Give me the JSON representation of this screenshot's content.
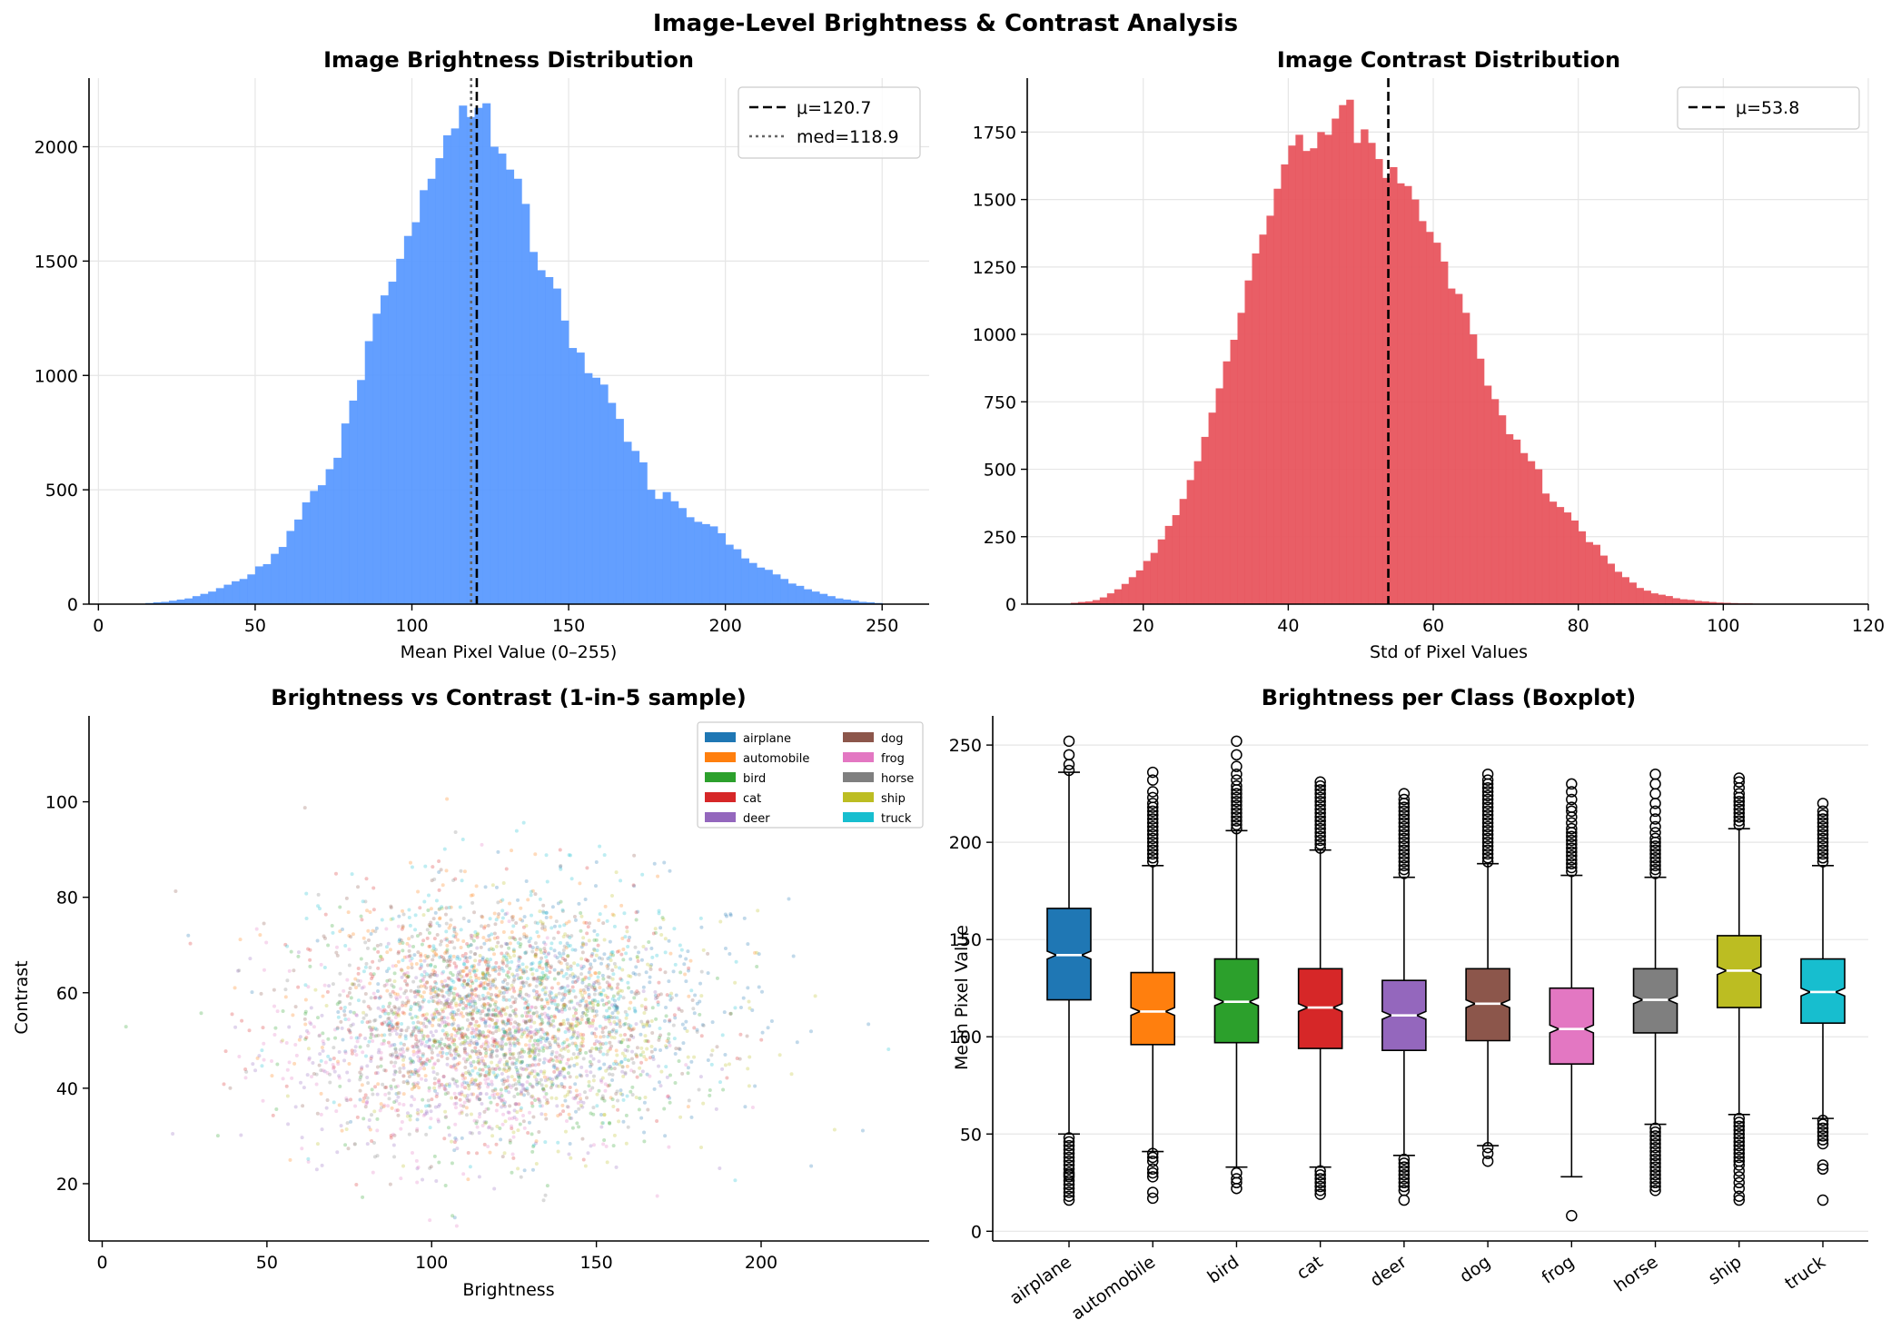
{
  "suptitle": "Image-Level Brightness & Contrast Analysis",
  "colors": {
    "brightness_hist": "#5b9aff",
    "contrast_hist": "#e8555e",
    "grid": "#e6e6e6",
    "axis": "#000000",
    "mean_line": "#000000",
    "median_line": "#666666",
    "box_median": "#ffffff",
    "classes": {
      "airplane": "#1f77b4",
      "automobile": "#ff7f0e",
      "bird": "#2ca02c",
      "cat": "#d62728",
      "deer": "#9467bd",
      "dog": "#8c564b",
      "frog": "#e377c2",
      "horse": "#7f7f7f",
      "ship": "#bcbd22",
      "truck": "#17becf"
    }
  },
  "chart_data": [
    {
      "type": "bar",
      "title": "Image Brightness Distribution",
      "xlabel": "Mean Pixel Value (0–255)",
      "ylabel": "",
      "xlim": [
        -3,
        265
      ],
      "ylim": [
        0,
        2300
      ],
      "xticks": [
        0,
        50,
        100,
        150,
        200,
        250
      ],
      "yticks": [
        0,
        500,
        1000,
        1500,
        2000
      ],
      "grid": true,
      "legend_position": "top-right",
      "bin_edges_start": 15,
      "bin_width": 2.5,
      "values": [
        5,
        8,
        10,
        15,
        20,
        25,
        35,
        45,
        55,
        70,
        85,
        100,
        110,
        130,
        165,
        175,
        220,
        250,
        320,
        370,
        445,
        495,
        520,
        590,
        640,
        790,
        890,
        980,
        1150,
        1270,
        1350,
        1410,
        1510,
        1610,
        1670,
        1810,
        1860,
        1950,
        2050,
        2080,
        2180,
        2130,
        2170,
        2190,
        2000,
        1970,
        1900,
        1860,
        1750,
        1540,
        1460,
        1430,
        1380,
        1240,
        1120,
        1100,
        1010,
        990,
        960,
        880,
        810,
        710,
        670,
        620,
        500,
        460,
        490,
        450,
        420,
        380,
        360,
        350,
        340,
        310,
        260,
        240,
        200,
        180,
        160,
        150,
        130,
        110,
        90,
        80,
        65,
        55,
        45,
        35,
        25,
        20,
        15,
        10,
        8,
        5
      ],
      "lines": [
        {
          "label": "μ=120.7",
          "x": 120.7,
          "style": "dashed"
        },
        {
          "label": "med=118.9",
          "x": 118.9,
          "style": "dotted"
        }
      ]
    },
    {
      "type": "bar",
      "title": "Image Contrast Distribution",
      "xlabel": "Std of Pixel Values",
      "ylabel": "",
      "xlim": [
        4,
        120
      ],
      "ylim": [
        0,
        1950
      ],
      "xticks": [
        20,
        40,
        60,
        80,
        100,
        120
      ],
      "yticks": [
        0,
        250,
        500,
        750,
        1000,
        1250,
        1500,
        1750
      ],
      "grid": true,
      "legend_position": "top-right",
      "bin_edges_start": 10,
      "bin_width": 1.0,
      "values": [
        5,
        8,
        10,
        15,
        25,
        40,
        55,
        75,
        100,
        125,
        160,
        190,
        240,
        290,
        330,
        390,
        460,
        530,
        620,
        710,
        800,
        900,
        980,
        1080,
        1200,
        1300,
        1370,
        1440,
        1540,
        1630,
        1700,
        1740,
        1680,
        1690,
        1750,
        1740,
        1800,
        1850,
        1870,
        1710,
        1760,
        1710,
        1650,
        1580,
        1620,
        1560,
        1550,
        1500,
        1420,
        1380,
        1340,
        1270,
        1170,
        1150,
        1080,
        1000,
        910,
        810,
        760,
        700,
        630,
        610,
        560,
        530,
        500,
        410,
        380,
        360,
        340,
        310,
        270,
        230,
        220,
        180,
        150,
        120,
        100,
        80,
        60,
        50,
        40,
        35,
        30,
        22,
        18,
        16,
        12,
        10,
        8,
        6,
        5,
        4,
        3,
        3,
        2
      ],
      "lines": [
        {
          "label": "μ=53.8",
          "x": 53.8,
          "style": "dashed"
        }
      ]
    },
    {
      "type": "scatter",
      "title": "Brightness vs Contrast (1-in-5 sample)",
      "xlabel": "Brightness",
      "ylabel": "Contrast",
      "xlim": [
        -4,
        251
      ],
      "ylim": [
        8,
        118
      ],
      "xticks": [
        0,
        50,
        100,
        150,
        200
      ],
      "yticks": [
        20,
        40,
        60,
        80,
        100
      ],
      "grid": false,
      "legend_position": "top-right",
      "series": [
        {
          "name": "airplane",
          "mean_x": 141,
          "mean_y": 57,
          "sd_x": 33,
          "sd_y": 13
        },
        {
          "name": "automobile",
          "mean_x": 116,
          "mean_y": 58,
          "sd_x": 26,
          "sd_y": 13
        },
        {
          "name": "bird",
          "mean_x": 120,
          "mean_y": 51,
          "sd_x": 30,
          "sd_y": 12
        },
        {
          "name": "cat",
          "mean_x": 114,
          "mean_y": 55,
          "sd_x": 29,
          "sd_y": 12
        },
        {
          "name": "deer",
          "mean_x": 111,
          "mean_y": 47,
          "sd_x": 27,
          "sd_y": 11
        },
        {
          "name": "dog",
          "mean_x": 117,
          "mean_y": 56,
          "sd_x": 28,
          "sd_y": 12
        },
        {
          "name": "frog",
          "mean_x": 105,
          "mean_y": 48,
          "sd_x": 28,
          "sd_y": 12
        },
        {
          "name": "horse",
          "mean_x": 118,
          "mean_y": 54,
          "sd_x": 26,
          "sd_y": 12
        },
        {
          "name": "ship",
          "mean_x": 133,
          "mean_y": 52,
          "sd_x": 28,
          "sd_y": 12
        },
        {
          "name": "truck",
          "mean_x": 123,
          "mean_y": 60,
          "sd_x": 27,
          "sd_y": 13
        }
      ]
    },
    {
      "type": "box",
      "title": "Brightness per Class (Boxplot)",
      "xlabel": "",
      "ylabel": "Mean Pixel Value",
      "ylim": [
        -5,
        265
      ],
      "yticks": [
        0,
        50,
        100,
        150,
        200,
        250
      ],
      "grid": true,
      "categories": [
        "airplane",
        "automobile",
        "bird",
        "cat",
        "deer",
        "dog",
        "frog",
        "horse",
        "ship",
        "truck"
      ],
      "boxes": [
        {
          "q1": 119,
          "median": 142,
          "q3": 166,
          "notch_lo": 140,
          "notch_hi": 144,
          "whislo": 50,
          "whishi": 236,
          "fliers_lo": [
            48,
            46,
            44,
            42,
            40,
            38,
            36,
            34,
            32,
            30,
            29,
            28,
            26,
            24,
            22,
            20,
            18,
            16
          ],
          "fliers_hi": [
            237,
            240,
            245,
            252
          ]
        },
        {
          "q1": 96,
          "median": 113,
          "q3": 133,
          "notch_lo": 111,
          "notch_hi": 115,
          "whislo": 41,
          "whishi": 188,
          "fliers_lo": [
            40,
            38,
            36,
            32,
            30,
            28,
            20,
            17
          ],
          "fliers_hi": [
            190,
            192,
            194,
            196,
            198,
            200,
            202,
            204,
            206,
            208,
            210,
            212,
            214,
            216,
            218,
            220,
            223,
            226,
            232,
            236
          ]
        },
        {
          "q1": 97,
          "median": 118,
          "q3": 140,
          "notch_lo": 116,
          "notch_hi": 120,
          "whislo": 33,
          "whishi": 206,
          "fliers_lo": [
            30,
            27,
            25,
            22
          ],
          "fliers_hi": [
            207,
            209,
            211,
            213,
            215,
            217,
            219,
            221,
            223,
            225,
            227,
            229,
            232,
            235,
            239,
            245,
            252
          ]
        },
        {
          "q1": 94,
          "median": 115,
          "q3": 135,
          "notch_lo": 113,
          "notch_hi": 117,
          "whislo": 33,
          "whishi": 196,
          "fliers_lo": [
            31,
            29,
            27,
            25,
            23,
            21,
            19
          ],
          "fliers_hi": [
            197,
            199,
            201,
            203,
            205,
            207,
            209,
            211,
            213,
            215,
            217,
            219,
            221,
            223,
            225,
            227,
            229,
            231
          ]
        },
        {
          "q1": 93,
          "median": 111,
          "q3": 129,
          "notch_lo": 109,
          "notch_hi": 113,
          "whislo": 39,
          "whishi": 182,
          "fliers_lo": [
            37,
            35,
            33,
            31,
            29,
            27,
            25,
            23,
            21,
            16
          ],
          "fliers_hi": [
            184,
            186,
            188,
            190,
            192,
            194,
            196,
            198,
            200,
            202,
            204,
            206,
            208,
            210,
            212,
            214,
            216,
            218,
            220,
            222,
            225
          ]
        },
        {
          "q1": 98,
          "median": 117,
          "q3": 135,
          "notch_lo": 115,
          "notch_hi": 119,
          "whislo": 44,
          "whishi": 189,
          "fliers_lo": [
            43,
            40,
            36
          ],
          "fliers_hi": [
            190,
            192,
            194,
            196,
            198,
            200,
            202,
            204,
            206,
            208,
            210,
            212,
            214,
            216,
            218,
            220,
            222,
            224,
            226,
            228,
            230,
            232,
            235
          ]
        },
        {
          "q1": 86,
          "median": 104,
          "q3": 125,
          "notch_lo": 102,
          "notch_hi": 106,
          "whislo": 28,
          "whishi": 183,
          "fliers_lo": [
            8
          ],
          "fliers_hi": [
            185,
            187,
            189,
            191,
            193,
            195,
            197,
            199,
            201,
            203,
            205,
            207,
            210,
            213,
            216,
            218,
            222,
            226,
            230
          ]
        },
        {
          "q1": 102,
          "median": 119,
          "q3": 135,
          "notch_lo": 117,
          "notch_hi": 121,
          "whislo": 55,
          "whishi": 182,
          "fliers_lo": [
            53,
            51,
            49,
            47,
            45,
            43,
            41,
            39,
            37,
            35,
            33,
            31,
            29,
            27,
            25,
            23,
            21
          ],
          "fliers_hi": [
            184,
            186,
            188,
            190,
            192,
            194,
            196,
            198,
            200,
            202,
            205,
            208,
            212,
            216,
            220,
            225,
            230,
            235
          ]
        },
        {
          "q1": 115,
          "median": 134,
          "q3": 152,
          "notch_lo": 132,
          "notch_hi": 136,
          "whislo": 60,
          "whishi": 207,
          "fliers_lo": [
            58,
            56,
            54,
            52,
            50,
            48,
            46,
            44,
            42,
            40,
            38,
            36,
            34,
            31,
            28,
            25,
            22,
            18,
            16
          ],
          "fliers_hi": [
            209,
            211,
            213,
            215,
            217,
            219,
            221,
            223,
            225,
            228,
            231,
            233
          ]
        },
        {
          "q1": 107,
          "median": 123,
          "q3": 140,
          "notch_lo": 121,
          "notch_hi": 125,
          "whislo": 58,
          "whishi": 188,
          "fliers_lo": [
            57,
            55,
            53,
            51,
            49,
            47,
            45,
            34,
            32,
            16
          ],
          "fliers_hi": [
            190,
            192,
            194,
            196,
            198,
            200,
            202,
            204,
            206,
            208,
            210,
            212,
            214,
            216,
            220
          ]
        }
      ]
    }
  ]
}
